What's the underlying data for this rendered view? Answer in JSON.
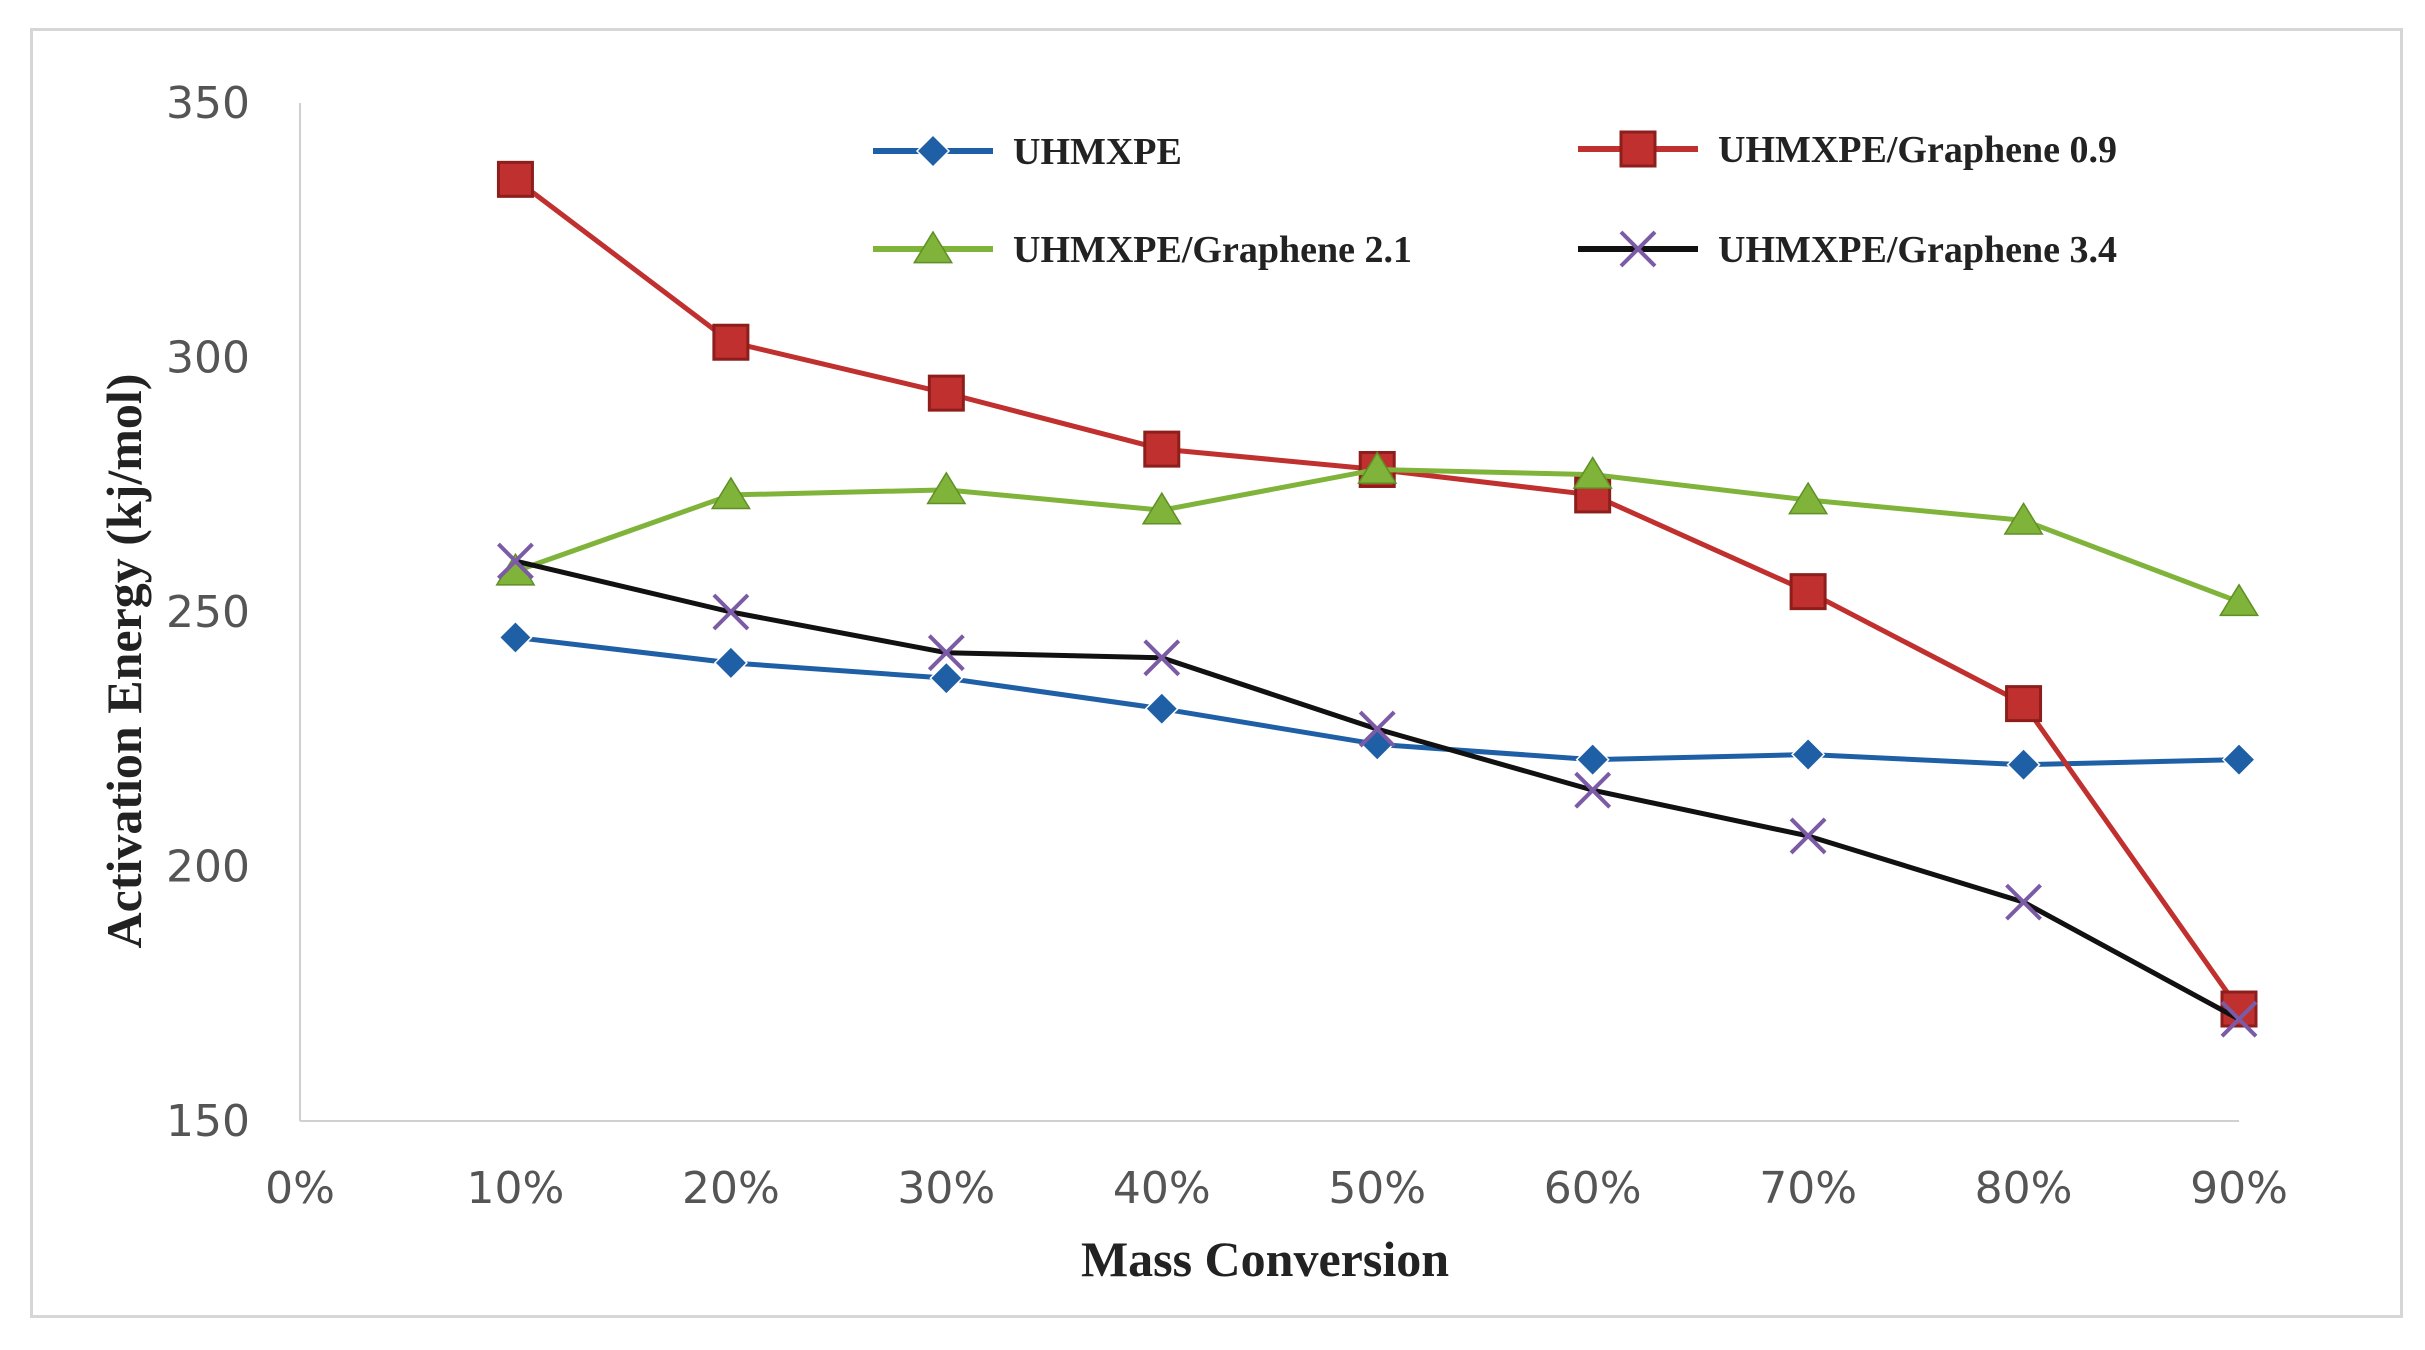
{
  "chart_data": {
    "type": "line",
    "title": "",
    "xlabel": "Mass Conversion",
    "ylabel": "Activation Energy (kj/mol)",
    "x_ticks": [
      "0%",
      "10%",
      "20%",
      "30%",
      "40%",
      "50%",
      "60%",
      "70%",
      "80%",
      "90%"
    ],
    "x": [
      10,
      20,
      30,
      40,
      50,
      60,
      70,
      80,
      90
    ],
    "xlim": [
      0,
      90
    ],
    "y_ticks": [
      150,
      200,
      250,
      300,
      350
    ],
    "ylim": [
      150,
      350
    ],
    "grid": false,
    "legend_position": "top",
    "series": [
      {
        "name": "UHMXPE",
        "color": "#1f5fa6",
        "marker": "diamond",
        "values": [
          245,
          240,
          237,
          231,
          224,
          221,
          222,
          220,
          221
        ]
      },
      {
        "name": "UHMXPE/Graphene 0.9",
        "color": "#c0302e",
        "marker": "square",
        "values": [
          335,
          303,
          293,
          282,
          278,
          273,
          254,
          232,
          172
        ]
      },
      {
        "name": "UHMXPE/Graphene 2.1",
        "color": "#7fb33a",
        "marker": "triangle",
        "values": [
          258,
          273,
          274,
          270,
          278,
          277,
          272,
          268,
          252
        ]
      },
      {
        "name": "UHMXPE/Graphene 3.4",
        "color": "#111111",
        "marker": "x",
        "values": [
          260,
          250,
          242,
          241,
          227,
          215,
          206,
          193,
          170
        ]
      }
    ]
  }
}
